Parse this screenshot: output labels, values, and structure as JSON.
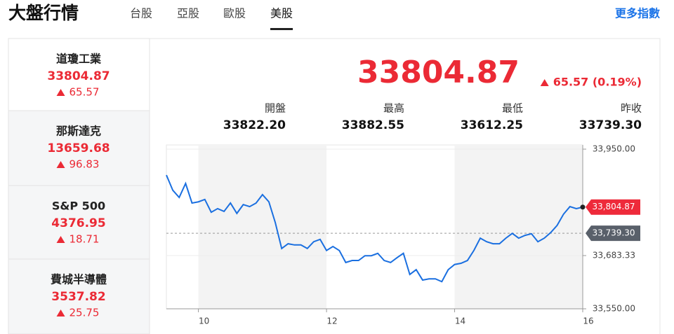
{
  "header": {
    "title": "大盤行情",
    "tabs": [
      "台股",
      "亞股",
      "歐股",
      "美股"
    ],
    "active_tab": 3,
    "more_link": "更多指數"
  },
  "sidebar": [
    {
      "name": "道瓊工業",
      "value": "33804.87",
      "change": "65.57"
    },
    {
      "name": "那斯達克",
      "value": "13659.68",
      "change": "96.83"
    },
    {
      "name": "S&P 500",
      "value": "4376.95",
      "change": "18.71"
    },
    {
      "name": "費城半導體",
      "value": "3537.82",
      "change": "25.75"
    }
  ],
  "quote": {
    "price": "33804.87",
    "change": "65.57 (0.19%)",
    "stats": [
      {
        "label": "開盤",
        "value": "33822.20"
      },
      {
        "label": "最高",
        "value": "33882.55"
      },
      {
        "label": "最低",
        "value": "33612.25"
      },
      {
        "label": "昨收",
        "value": "33739.30"
      }
    ]
  },
  "chart_data": {
    "type": "line",
    "color": "#1a6fe0",
    "x": [
      9.5,
      9.6,
      9.7,
      9.8,
      9.9,
      10.0,
      10.1,
      10.2,
      10.3,
      10.4,
      10.5,
      10.6,
      10.7,
      10.8,
      10.9,
      11.0,
      11.1,
      11.2,
      11.3,
      11.4,
      11.5,
      11.6,
      11.7,
      11.8,
      11.9,
      12.0,
      12.1,
      12.2,
      12.3,
      12.4,
      12.5,
      12.6,
      12.7,
      12.8,
      12.9,
      13.0,
      13.1,
      13.2,
      13.3,
      13.4,
      13.5,
      13.6,
      13.7,
      13.8,
      13.9,
      14.0,
      14.1,
      14.2,
      14.3,
      14.4,
      14.5,
      14.6,
      14.7,
      14.8,
      14.9,
      15.0,
      15.1,
      15.2,
      15.3,
      15.4,
      15.5,
      15.6,
      15.7,
      15.8,
      15.9,
      16.0
    ],
    "values": [
      33885,
      33847,
      33829,
      33864,
      33815,
      33818,
      33824,
      33792,
      33801,
      33794,
      33815,
      33789,
      33811,
      33806,
      33815,
      33836,
      33818,
      33766,
      33701,
      33713,
      33710,
      33710,
      33701,
      33718,
      33724,
      33696,
      33706,
      33696,
      33666,
      33671,
      33671,
      33683,
      33683,
      33689,
      33671,
      33666,
      33678,
      33689,
      33636,
      33648,
      33622,
      33625,
      33625,
      33618,
      33648,
      33661,
      33664,
      33671,
      33696,
      33727,
      33718,
      33713,
      33713,
      33727,
      33739,
      33727,
      33734,
      33738,
      33718,
      33727,
      33741,
      33759,
      33787,
      33806,
      33801,
      33804.87
    ],
    "xlim": [
      9.5,
      16
    ],
    "xticks": [
      10,
      12,
      14,
      16
    ],
    "ylim": [
      33550,
      33950
    ],
    "yticks": [
      {
        "value": 33550,
        "label": "33,550.00"
      },
      {
        "value": 33683.33,
        "label": "33,683.33"
      },
      {
        "value": 33950,
        "label": "33,950.00"
      }
    ],
    "last_price": {
      "value": 33804.87,
      "label": "33,804.87"
    },
    "prev_close": {
      "value": 33739.3,
      "label": "33,739.30"
    },
    "grid": true
  }
}
